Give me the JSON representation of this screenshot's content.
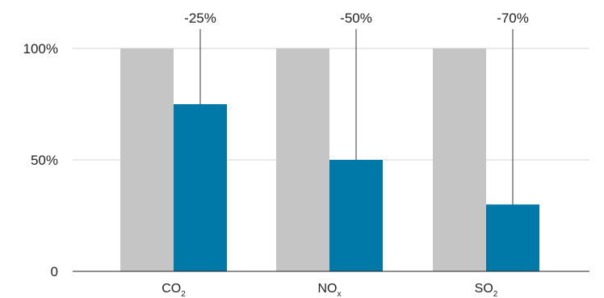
{
  "chart_data": {
    "type": "bar",
    "categories": [
      {
        "base": "CO",
        "sub": "2"
      },
      {
        "base": "NO",
        "sub": "x"
      },
      {
        "base": "SO",
        "sub": "2"
      }
    ],
    "series": [
      {
        "values": [
          100,
          100,
          100
        ],
        "color": "#c4c5c4"
      },
      {
        "values": [
          75,
          50,
          30
        ],
        "color": "#0078a8"
      }
    ],
    "annotations": [
      "-25%",
      "-50%",
      "-70%"
    ],
    "y_ticks": [
      {
        "value": 0,
        "label": "0"
      },
      {
        "value": 50,
        "label": "50%"
      },
      {
        "value": 100,
        "label": "100%"
      }
    ],
    "ylim": [
      0,
      100
    ],
    "title": "",
    "xlabel": "",
    "ylabel": "",
    "grid": true,
    "legend": "none"
  }
}
